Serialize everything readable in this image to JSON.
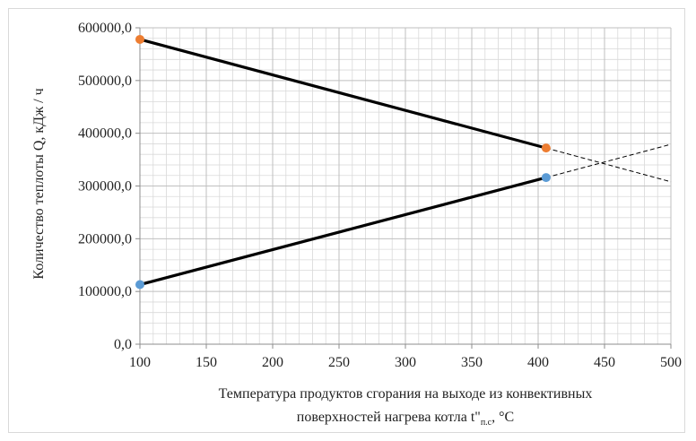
{
  "chart_data": {
    "type": "line",
    "title": "",
    "xlabel_line1": "Температура продуктов сгорания на выходе из конвективных",
    "xlabel_line2_prefix": "поверхностей нагрева котла t\"",
    "xlabel_subscript": "п.с",
    "xlabel_line2_suffix": ", °С",
    "ylabel": "Количество теплоты Q, кДж / ч",
    "xlim": [
      100,
      500
    ],
    "ylim": [
      0,
      600000
    ],
    "x_ticks": [
      "100",
      "150",
      "200",
      "250",
      "300",
      "350",
      "400",
      "450",
      "500"
    ],
    "y_ticks": [
      "0,0",
      "100000,0",
      "200000,0",
      "300000,0",
      "400000,0",
      "500000,0",
      "600000,0"
    ],
    "minor_x_step": 10,
    "minor_y_step": 20000,
    "grid": true,
    "legend": "none",
    "series": [
      {
        "points": [
          {
            "x": 100,
            "y": 578000
          },
          {
            "x": 406,
            "y": 372000
          }
        ],
        "extension_to": {
          "x": 500,
          "y": 308000
        },
        "marker_color": "#ED7D31"
      },
      {
        "points": [
          {
            "x": 100,
            "y": 113000
          },
          {
            "x": 406,
            "y": 316000
          }
        ],
        "extension_to": {
          "x": 500,
          "y": 379000
        },
        "marker_color": "#5B9BD5"
      }
    ],
    "colors": {
      "line": "#000000",
      "grid": "#bfbfbf",
      "minor_grid": "#d9d9d9"
    }
  }
}
